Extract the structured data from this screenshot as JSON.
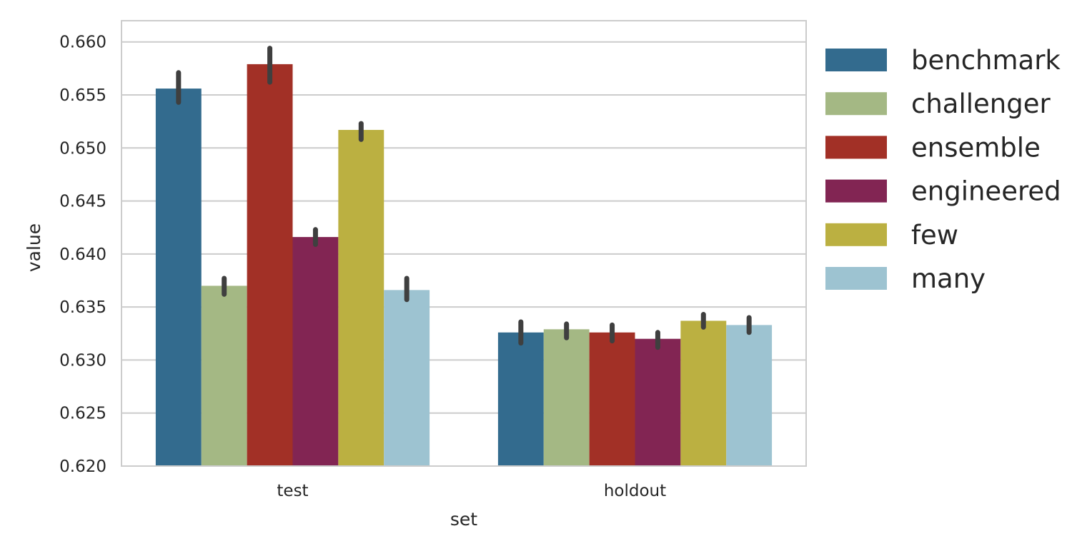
{
  "chart_data": {
    "type": "bar",
    "xlabel": "set",
    "ylabel": "value",
    "categories": [
      "test",
      "holdout"
    ],
    "ylim": [
      0.62,
      0.662
    ],
    "yticks": [
      0.62,
      0.625,
      0.63,
      0.635,
      0.64,
      0.645,
      0.65,
      0.655,
      0.66
    ],
    "ytick_labels": [
      "0.620",
      "0.625",
      "0.630",
      "0.635",
      "0.640",
      "0.645",
      "0.650",
      "0.655",
      "0.660"
    ],
    "grid": true,
    "legend_position": "outside-right",
    "series": [
      {
        "name": "benchmark",
        "color": "#336b8e",
        "values": [
          0.6556,
          0.6326
        ],
        "err_low": [
          0.6543,
          0.6316
        ],
        "err_high": [
          0.6571,
          0.6336
        ]
      },
      {
        "name": "challenger",
        "color": "#a4b884",
        "values": [
          0.637,
          0.6329
        ],
        "err_low": [
          0.6362,
          0.6321
        ],
        "err_high": [
          0.6377,
          0.6334
        ]
      },
      {
        "name": "ensemble",
        "color": "#a23026",
        "values": [
          0.6579,
          0.6326
        ],
        "err_low": [
          0.6562,
          0.6318
        ],
        "err_high": [
          0.6594,
          0.6333
        ]
      },
      {
        "name": "engineered",
        "color": "#822553",
        "values": [
          0.6416,
          0.632
        ],
        "err_low": [
          0.6409,
          0.6312
        ],
        "err_high": [
          0.6423,
          0.6326
        ]
      },
      {
        "name": "few",
        "color": "#bbb041",
        "values": [
          0.6517,
          0.6337
        ],
        "err_low": [
          0.6508,
          0.6331
        ],
        "err_high": [
          0.6523,
          0.6343
        ]
      },
      {
        "name": "many",
        "color": "#9dc3d1",
        "values": [
          0.6366,
          0.6333
        ],
        "err_low": [
          0.6357,
          0.6326
        ],
        "err_high": [
          0.6377,
          0.634
        ]
      }
    ]
  }
}
